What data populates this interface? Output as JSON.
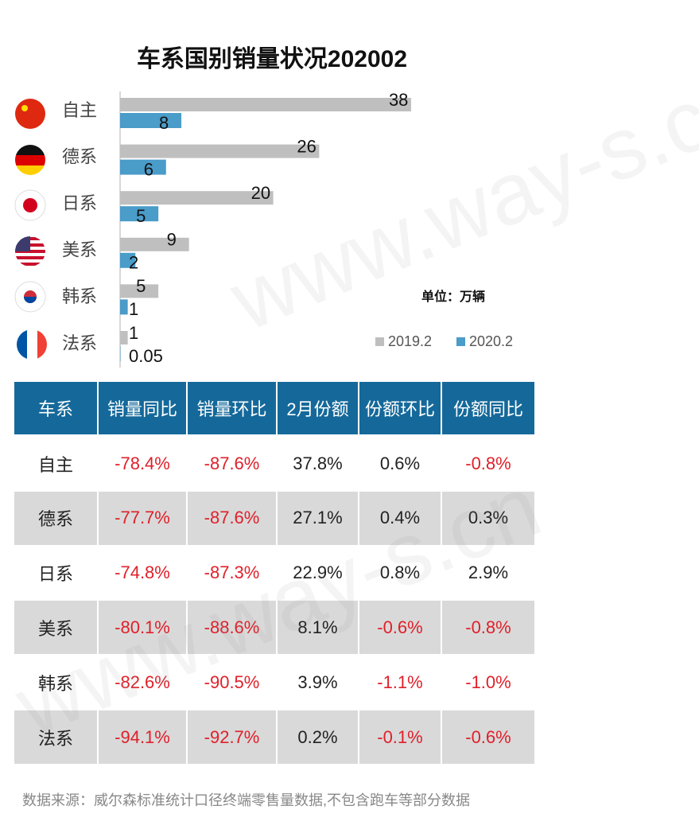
{
  "chart_data": {
    "type": "bar",
    "orientation": "horizontal",
    "title": "车系国别销量状况202002",
    "categories": [
      "自主",
      "德系",
      "日系",
      "美系",
      "韩系",
      "法系"
    ],
    "series": [
      {
        "name": "2019.2",
        "color": "#bfbfbf",
        "values": [
          38,
          26,
          20,
          9,
          5,
          1
        ]
      },
      {
        "name": "2020.2",
        "color": "#4a9cc9",
        "values": [
          8,
          6,
          5,
          2,
          1,
          0.05
        ]
      }
    ],
    "annotation": "单位：万辆",
    "legend": "bottom-right"
  },
  "table": {
    "header": [
      "车系",
      "销量同比",
      "销量环比",
      "2月份额",
      "份额环比",
      "份额同比"
    ],
    "rows": [
      [
        "自主",
        "-78.4%",
        "-87.6%",
        "37.8%",
        "0.6%",
        "-0.8%"
      ],
      [
        "德系",
        "-77.7%",
        "-87.6%",
        "27.1%",
        "0.4%",
        "0.3%"
      ],
      [
        "日系",
        "-74.8%",
        "-87.3%",
        "22.9%",
        "0.8%",
        "2.9%"
      ],
      [
        "美系",
        "-80.1%",
        "-88.6%",
        "8.1%",
        "-0.6%",
        "-0.8%"
      ],
      [
        "韩系",
        "-82.6%",
        "-90.5%",
        "3.9%",
        "-1.1%",
        "-1.0%"
      ],
      [
        "法系",
        "-94.1%",
        "-92.7%",
        "0.2%",
        "-0.1%",
        "-0.6%"
      ]
    ]
  },
  "source": "数据来源：威尔森标准统计口径终端零售量数据,不包含跑车等部分数据",
  "watermark": "www.way-s.cn"
}
